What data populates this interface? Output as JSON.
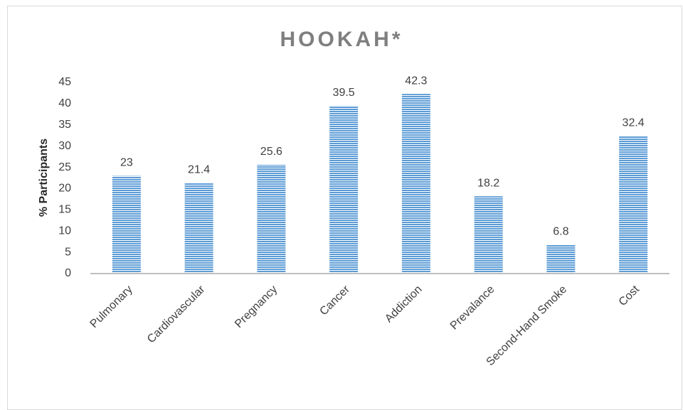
{
  "chart_data": {
    "type": "bar",
    "title": "HOOKAH*",
    "y_label": "% Participants",
    "categories": [
      "Pulmonary",
      "Cardiovascular",
      "Pregnancy",
      "Cancer",
      "Addiction",
      "Prevalance",
      "Second-Hand Smoke",
      "Cost"
    ],
    "values": [
      23,
      21.4,
      25.6,
      39.5,
      42.3,
      18.2,
      6.8,
      32.4
    ],
    "color": "#5b9bd5",
    "ylim": [
      0,
      45
    ],
    "yticks": [
      0,
      5,
      10,
      15,
      20,
      25,
      30,
      35,
      40,
      45
    ],
    "grid": false
  }
}
